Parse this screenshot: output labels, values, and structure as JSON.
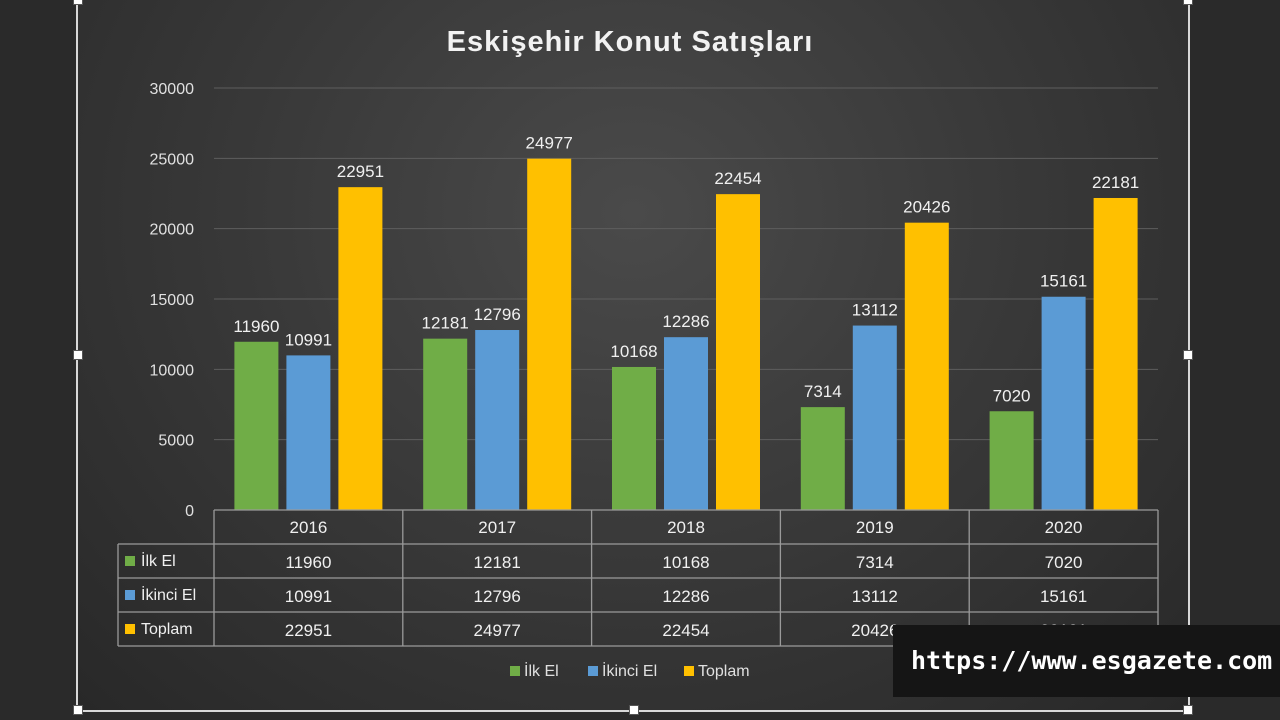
{
  "chart_data": {
    "type": "bar",
    "title": "Eskişehir Konut Satışları",
    "categories": [
      "2016",
      "2017",
      "2018",
      "2019",
      "2020"
    ],
    "series": [
      {
        "name": "İlk El",
        "color": "#70ad47",
        "values": [
          11960,
          12181,
          10168,
          7314,
          7020
        ]
      },
      {
        "name": "İkinci El",
        "color": "#5b9bd5",
        "values": [
          10991,
          12796,
          12286,
          13112,
          15161
        ]
      },
      {
        "name": "Toplam",
        "color": "#ffc000",
        "values": [
          22951,
          24977,
          22454,
          20426,
          22181
        ]
      }
    ],
    "ylim": [
      0,
      30000
    ],
    "yticks": [
      0,
      5000,
      10000,
      15000,
      20000,
      25000,
      30000
    ],
    "grid": true,
    "data_labels": true,
    "data_table": true,
    "legend_position": "bottom"
  },
  "watermark_text": "https://www.esgazete.com"
}
